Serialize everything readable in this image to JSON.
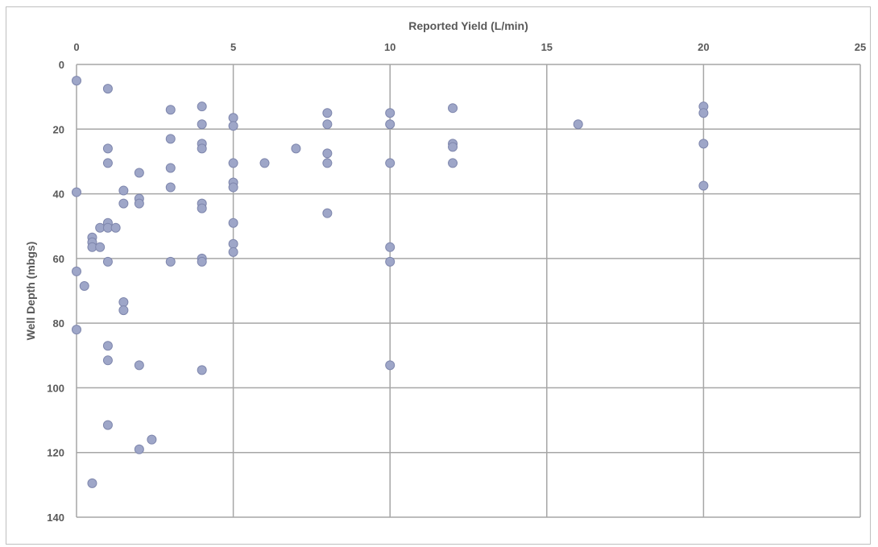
{
  "chart_data": {
    "type": "scatter",
    "xlabel": "Reported Yield (L/min)",
    "ylabel": "Well Depth (mbgs)",
    "xlim": [
      0,
      25
    ],
    "ylim": [
      0,
      140
    ],
    "y_axis_reversed": true,
    "x_axis_position": "top",
    "x_ticks": [
      0,
      5,
      10,
      15,
      20,
      25
    ],
    "y_ticks": [
      0,
      20,
      40,
      60,
      80,
      100,
      120,
      140
    ],
    "grid": true,
    "legend": "none",
    "marker_color": "#9ea6c8",
    "marker_edge_color": "#7f87ad",
    "grid_color": "#a6a6a6",
    "points": [
      {
        "x": 0,
        "y": 5
      },
      {
        "x": 0,
        "y": 39.5
      },
      {
        "x": 0,
        "y": 64
      },
      {
        "x": 0,
        "y": 82
      },
      {
        "x": 0.25,
        "y": 68.5
      },
      {
        "x": 0.5,
        "y": 53.5
      },
      {
        "x": 0.5,
        "y": 55
      },
      {
        "x": 0.5,
        "y": 56.5
      },
      {
        "x": 0.5,
        "y": 129.5
      },
      {
        "x": 0.75,
        "y": 50.5
      },
      {
        "x": 0.75,
        "y": 56.5
      },
      {
        "x": 1,
        "y": 7.5
      },
      {
        "x": 1,
        "y": 26
      },
      {
        "x": 1,
        "y": 30.5
      },
      {
        "x": 1,
        "y": 49
      },
      {
        "x": 1,
        "y": 50.5
      },
      {
        "x": 1,
        "y": 61
      },
      {
        "x": 1,
        "y": 87
      },
      {
        "x": 1,
        "y": 91.5
      },
      {
        "x": 1,
        "y": 111.5
      },
      {
        "x": 1.25,
        "y": 50.5
      },
      {
        "x": 1.5,
        "y": 39
      },
      {
        "x": 1.5,
        "y": 43
      },
      {
        "x": 1.5,
        "y": 73.5
      },
      {
        "x": 1.5,
        "y": 76
      },
      {
        "x": 2,
        "y": 33.5
      },
      {
        "x": 2,
        "y": 41.5
      },
      {
        "x": 2,
        "y": 43
      },
      {
        "x": 2,
        "y": 93
      },
      {
        "x": 2,
        "y": 119
      },
      {
        "x": 2.4,
        "y": 116
      },
      {
        "x": 3,
        "y": 14
      },
      {
        "x": 3,
        "y": 23
      },
      {
        "x": 3,
        "y": 32
      },
      {
        "x": 3,
        "y": 38
      },
      {
        "x": 3,
        "y": 61
      },
      {
        "x": 4,
        "y": 13
      },
      {
        "x": 4,
        "y": 18.5
      },
      {
        "x": 4,
        "y": 24.5
      },
      {
        "x": 4,
        "y": 26
      },
      {
        "x": 4,
        "y": 43
      },
      {
        "x": 4,
        "y": 44.5
      },
      {
        "x": 4,
        "y": 60
      },
      {
        "x": 4,
        "y": 61
      },
      {
        "x": 4,
        "y": 94.5
      },
      {
        "x": 5,
        "y": 16.5
      },
      {
        "x": 5,
        "y": 19
      },
      {
        "x": 5,
        "y": 30.5
      },
      {
        "x": 5,
        "y": 36.5
      },
      {
        "x": 5,
        "y": 38
      },
      {
        "x": 5,
        "y": 49
      },
      {
        "x": 5,
        "y": 55.5
      },
      {
        "x": 5,
        "y": 58
      },
      {
        "x": 6,
        "y": 30.5
      },
      {
        "x": 7,
        "y": 26
      },
      {
        "x": 8,
        "y": 15
      },
      {
        "x": 8,
        "y": 18.5
      },
      {
        "x": 8,
        "y": 27.5
      },
      {
        "x": 8,
        "y": 30.5
      },
      {
        "x": 8,
        "y": 46
      },
      {
        "x": 10,
        "y": 15
      },
      {
        "x": 10,
        "y": 18.5
      },
      {
        "x": 10,
        "y": 30.5
      },
      {
        "x": 10,
        "y": 56.5
      },
      {
        "x": 10,
        "y": 61
      },
      {
        "x": 10,
        "y": 93
      },
      {
        "x": 12,
        "y": 13.5
      },
      {
        "x": 12,
        "y": 24.5
      },
      {
        "x": 12,
        "y": 25.5
      },
      {
        "x": 12,
        "y": 30.5
      },
      {
        "x": 16,
        "y": 18.5
      },
      {
        "x": 20,
        "y": 13
      },
      {
        "x": 20,
        "y": 15
      },
      {
        "x": 20,
        "y": 24.5
      },
      {
        "x": 20,
        "y": 37.5
      }
    ]
  }
}
